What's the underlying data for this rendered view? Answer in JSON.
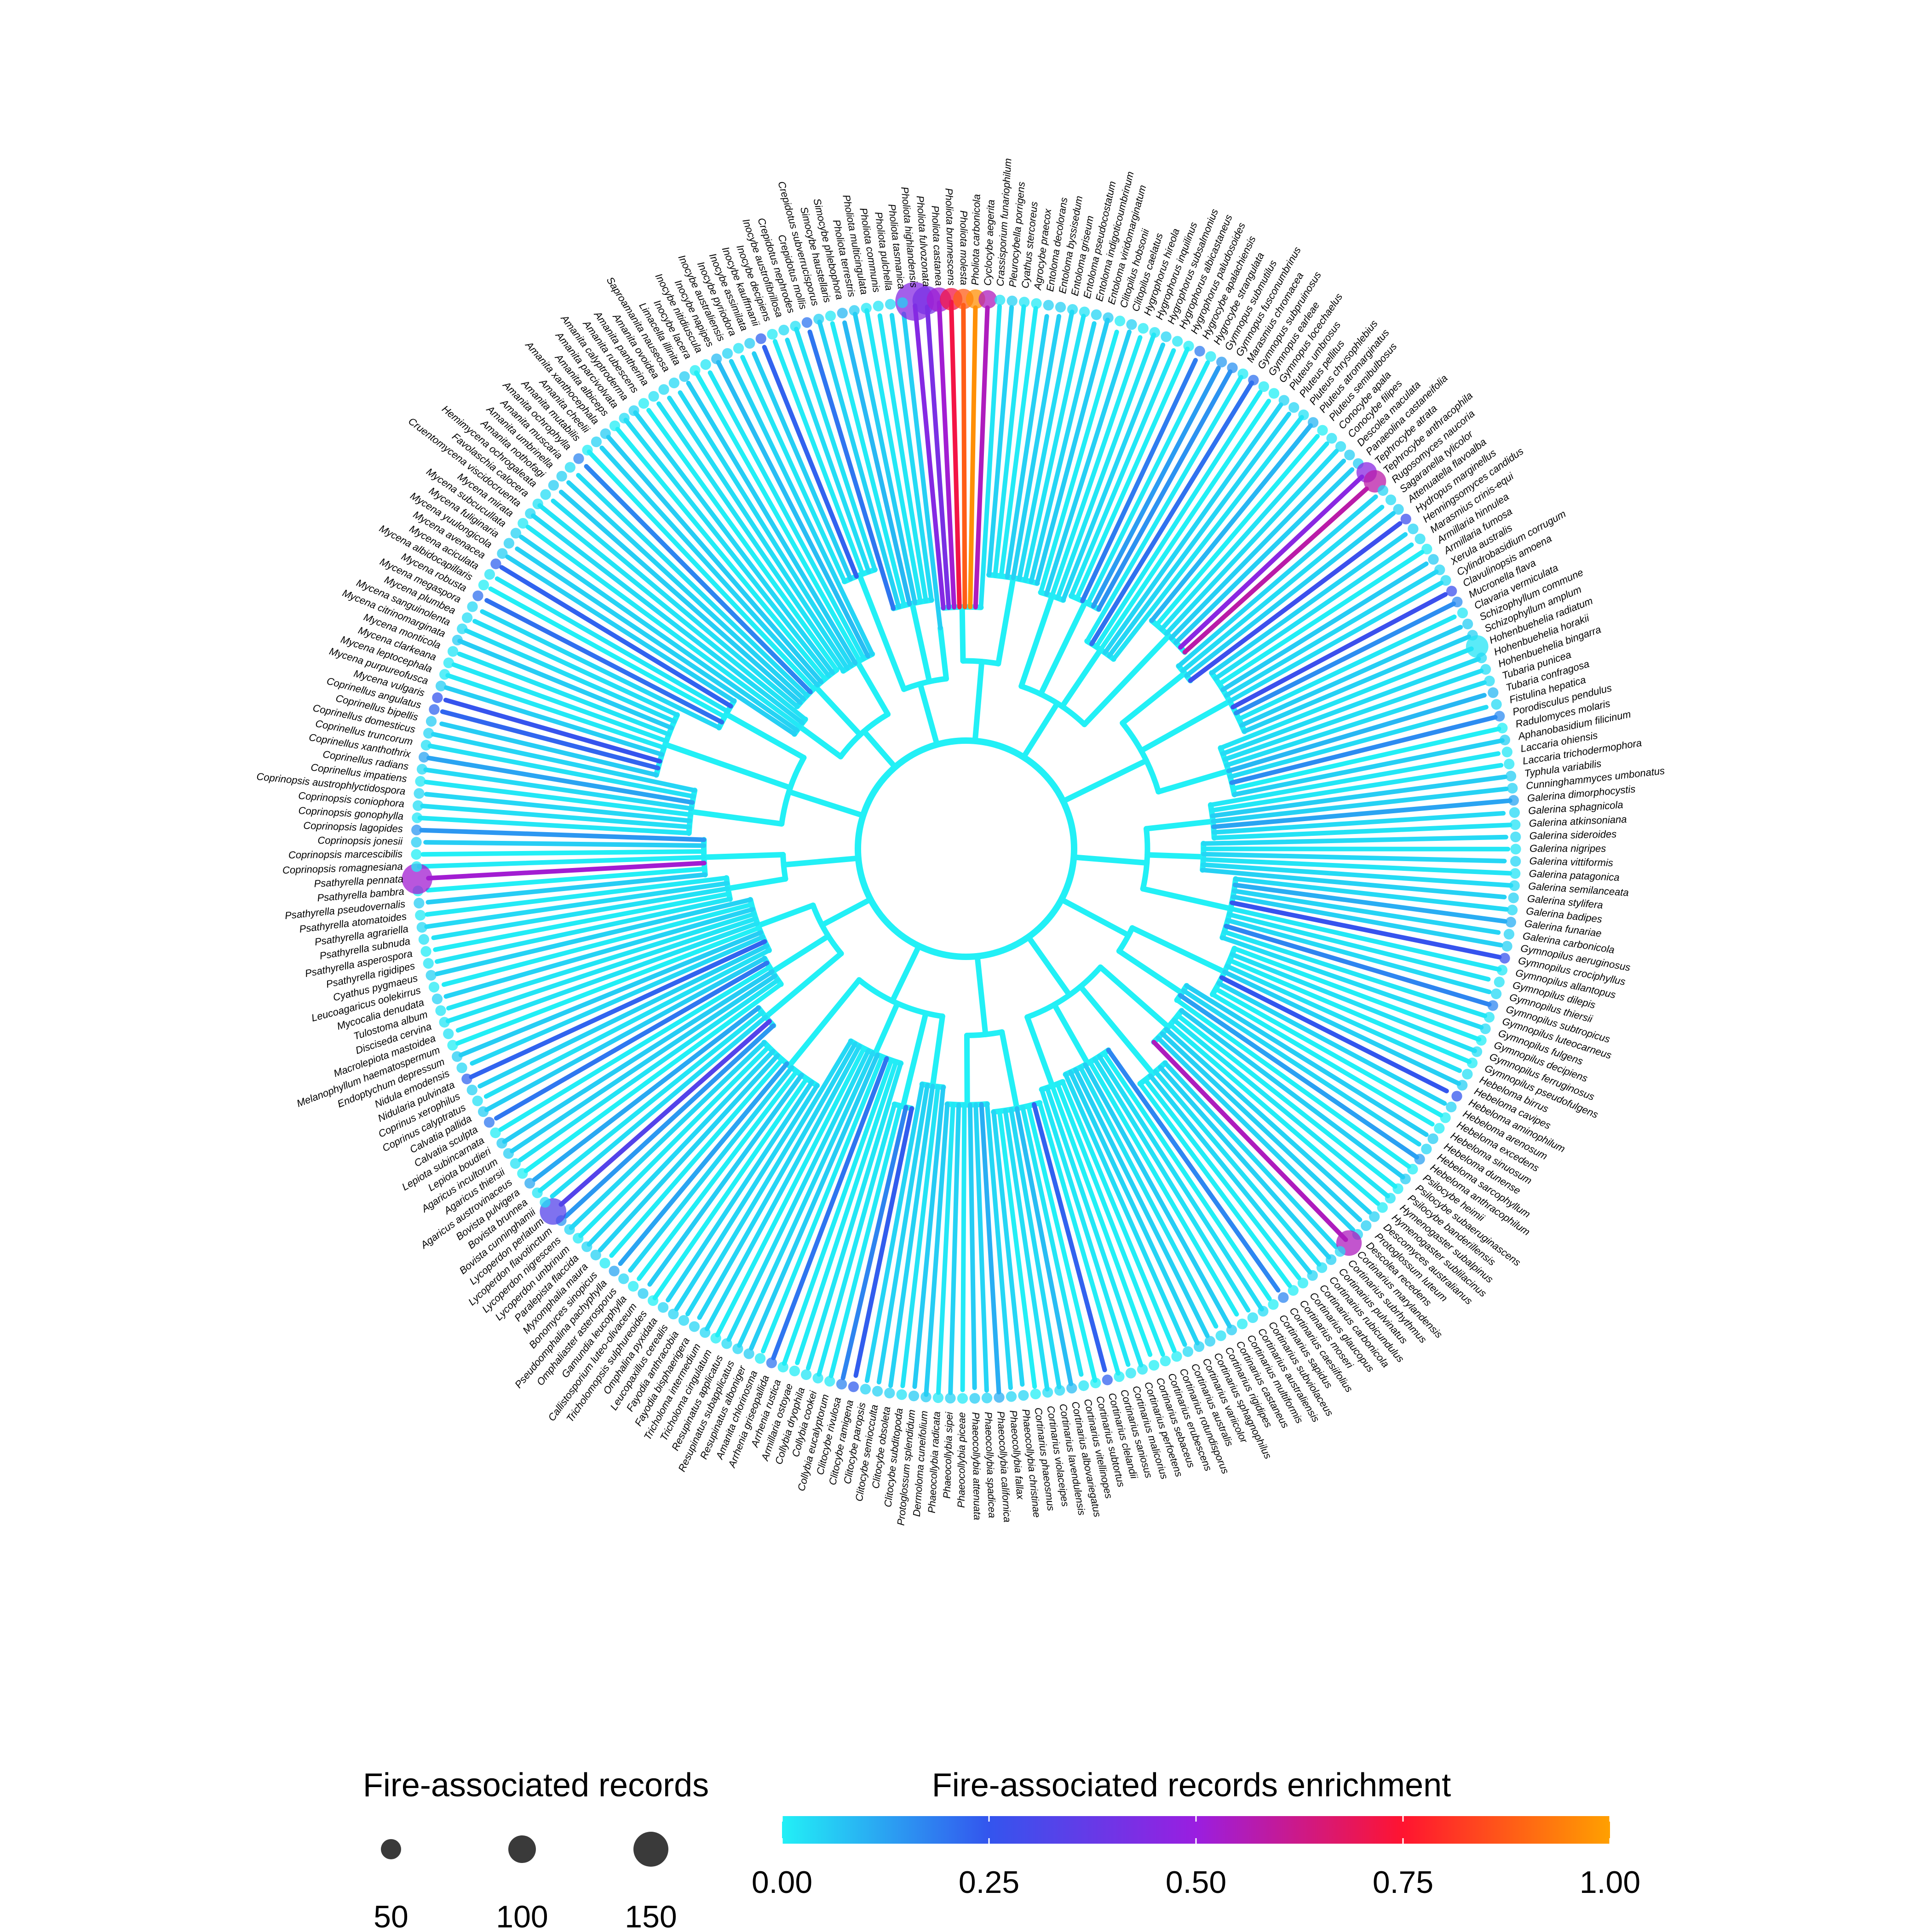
{
  "figure": {
    "type": "circular-phylogenetic-tree",
    "background": "#ffffff",
    "branch_color_default": "#22f0f6",
    "taxa": [
      "Pholiota highlandensis",
      "Pholiota fulvozonata",
      "Pholiota castanea",
      "Pholiota brunnescens",
      "Pholiota molesta",
      "Pholiota carbonicola",
      "Cyclocybe aegerita",
      "Crassisporium funariophilum",
      "Pleurocybella porrigens",
      "Cyathus stercoreus",
      "Agrocybe praecox",
      "Entoloma decolorans",
      "Entoloma byssisedum",
      "Entoloma griseum",
      "Entoloma pseudocostatum",
      "Entoloma indigoticoumbrinum",
      "Entoloma viridomarginatum",
      "Clitopilus hobsonii",
      "Clitopilus caelatus",
      "Hygrophorus hireola",
      "Hygrophorus inquilinus",
      "Hygrophorus subsalmonius",
      "Hygrophorus albicastaneus",
      "Hygrophorus paludosoides",
      "Hygrocybe apalachiensis",
      "Hygrocybe strangulata",
      "Gymnopus submutilus",
      "Gymnopus fusconumbrinus",
      "Marasmius chromacea",
      "Gymnopus subpruinosus",
      "Gymnopus earleae",
      "Gymnopus locechaelus",
      "Pluteus umbrosus",
      "Pluteus pellitus",
      "Pluteus chrysophlebius",
      "Pluteus atromarginatus",
      "Pluteus semibulbosus",
      "Conocybe apala",
      "Conocybe filipes",
      "Descolea maculata",
      "Panaeolina castaneifolia",
      "Tephrocybe atrata",
      "Tephrocybe anthracophila",
      "Rugosomyces naucoria",
      "Sagaranella tylicolor",
      "Attenuatella flavoalba",
      "Hydropus marginellus",
      "Henningsomyces candidus",
      "Marasmius crinis-equi",
      "Armillaria hinnulea",
      "Armillaria fumosa",
      "Xerula australis",
      "Cylindrobasidium corrugum",
      "Clavulinopsis amoena",
      "Mucronella flava",
      "Clavaria vermiculata",
      "Schizophyllum commune",
      "Schizophyllum amplum",
      "Hohenbuehelia radiatum",
      "Hohenbuehelia horakii",
      "Hohenbuehelia bingarra",
      "Tubaria punicea",
      "Tubaria confragosa",
      "Fistulina hepatica",
      "Porodisculus pendulus",
      "Radulomyces molaris",
      "Aphanobasidium filicinum",
      "Laccaria ohiensis",
      "Laccaria trichodermophora",
      "Typhula variabilis",
      "Cunninghammyces umbonatus",
      "Galerina dimorphocystis",
      "Galerina sphagnicola",
      "Galerina atkinsoniana",
      "Galerina sideroides",
      "Galerina nigripes",
      "Galerina vittiformis",
      "Galerina patagonica",
      "Galerina semilanceata",
      "Galerina stylifera",
      "Galerina badipes",
      "Galerina funariae",
      "Galerina carbonicola",
      "Gymnopilus aeruginosus",
      "Gymnopilus crociphyllus",
      "Gymnopilus allantopus",
      "Gymnopilus dilepis",
      "Gymnopilus thiersii",
      "Gymnopilus subtropicus",
      "Gymnopilus luteocarneus",
      "Gymnopilus fulgens",
      "Gymnopilus decipiens",
      "Gymnopilus ferruginosus",
      "Gymnopilus pseudofulgens",
      "Hebeloma birrus",
      "Hebeloma cavipes",
      "Hebeloma aminophilum",
      "Hebeloma arenosum",
      "Hebeloma excedens",
      "Hebeloma sinuosum",
      "Hebeloma dunense",
      "Hebeloma sarcophyllum",
      "Hebeloma anthracophilum",
      "Psilocybe heimii",
      "Psilocybe subaeruginascens",
      "Psilocybe banderillensis",
      "Hymenogaster subalpinus",
      "Hymenogaster sublilacinus",
      "Descomyces australianus",
      "Protoglossum luteum",
      "Descolea recedens",
      "Cortinarius marylandensis",
      "Cortinarius subrhythmus",
      "Cortinarius pulvinatus",
      "Cortinarius rubicundulus",
      "Cortinarius carbonicola",
      "Cortinarius glaucopus",
      "Cortinarius moseri",
      "Cortinarius caesiifolius",
      "Cortinarius sapidus",
      "Cortinarius subviolaceus",
      "Cortinarius australiensis",
      "Cortinarius multiformis",
      "Cortinarius castaneus",
      "Cortinarius rigidipes",
      "Cortinarius sphagnophilus",
      "Cortinarius variicolor",
      "Cortinarius australis",
      "Cortinarius rotundisporus",
      "Cortinarius erubescens",
      "Cortinarius sebaceus",
      "Cortinarius perfoetens",
      "Cortinarius malicorius",
      "Cortinarius saniosus",
      "Cortinarius clelandii",
      "Cortinarius subtortus",
      "Cortinarius vitellinopes",
      "Cortinarius albovariegatus",
      "Cortinarius lavendulensis",
      "Cortinarius violaceipes",
      "Cortinarius phaeosmus",
      "Phaeocollybia christinae",
      "Phaeocollybia fallax",
      "Phaeocollybia californica",
      "Phaeocollybia spadicea",
      "Phaeocollybia attenuata",
      "Phaeocollybia piceae",
      "Phaeocollybia sipei",
      "Phaeocollybia radicata",
      "Dermoloma cuneifolium",
      "Protoglossum splendidum",
      "Clitocybe subditopoda",
      "Clitocybe obsoleta",
      "Clitocybe semiocculta",
      "Clitocybe paropsis",
      "Clitocybe ramigena",
      "Clitocybe rivulosa",
      "Collybia eucalyptorum",
      "Collybia cookei",
      "Collybia dryophila",
      "Armillaria ostoyae",
      "Arrhenia rustica",
      "Arrhenia griseopallida",
      "Amanita chlorinosma",
      "Resupinatus alboniger",
      "Resupinatus subapplicatus",
      "Resupinatus applicatus",
      "Tricholoma cingulatum",
      "Tricholoma intermedium",
      "Fayodia bisphaerigera",
      "Fayodia anthracobia",
      "Leucopaxillus cerealis",
      "Omphalina pyxidata",
      "Tricholomopsis sulphureoides",
      "Callistosporium luteo-olivaceum",
      "Gamundia leucophylla",
      "Omphaliaster asterosporus",
      "Pseudoomphalina pachyphylla",
      "Bonomyces sinopicus",
      "Myxomphalia maura",
      "Paralepista flaccida",
      "Lycoperdon umbrinum",
      "Lycoperdon nigrescens",
      "Lycoperdon flavotinctum",
      "Lycoperdon perlatum",
      "Bovista cunninghamii",
      "Bovista brunnea",
      "Bovista pulvigera",
      "Agaricus austrovinaceus",
      "Agaricus thiersii",
      "Agaricus incultorum",
      "Lepiota boudieri",
      "Lepiota subincarnata",
      "Calvatia sculpta",
      "Calvatia pallida",
      "Coprinus calyptratus",
      "Coprinus xerophilus",
      "Nidularia pulvinata",
      "Nidula emodensis",
      "Endoptychum depressum",
      "Melanophyllum haematospermum",
      "Macrolepiota mastoidea",
      "Disciseda cervina",
      "Tulostoma album",
      "Mycocalia denudata",
      "Leucoagaricus oolekirrus",
      "Cyathus pygmaeus",
      "Psathyrella rigidipes",
      "Psathyrella asperospora",
      "Psathyrella subnuda",
      "Psathyrella agrariella",
      "Psathyrella atomatoides",
      "Psathyrella pseudovernalis",
      "Psathyrella bambra",
      "Psathyrella pennata",
      "Coprinopsis romagnesiana",
      "Coprinopsis marcescibilis",
      "Coprinopsis jonesii",
      "Coprinopsis lagopides",
      "Coprinopsis gonophylla",
      "Coprinopsis coniophora",
      "Coprinopsis austrophlyctidospora",
      "Coprinellus impatiens",
      "Coprinellus radians",
      "Coprinellus xanthothrix",
      "Coprinellus truncorum",
      "Coprinellus domesticus",
      "Coprinellus bipellis",
      "Coprinellus angulatus",
      "Mycena vulgaris",
      "Mycena purpureofusca",
      "Mycena leptocephala",
      "Mycena clarkeana",
      "Mycena monticola",
      "Mycena citrinomarginata",
      "Mycena sanguinolenta",
      "Mycena plumbea",
      "Mycena megaspora",
      "Mycena robusta",
      "Mycena albidocapillaris",
      "Mycena aciculata",
      "Mycena avenacea",
      "Mycena yuulongicola",
      "Mycena fuliginaria",
      "Mycena subcucullata",
      "Mycena mirata",
      "Cruentomycena viscidocruenta",
      "Favolaschia calocera",
      "Hemimycena ochrogaleata",
      "Amanita nothofagi",
      "Amanita umbrinella",
      "Amanita muscaria",
      "Amanita ochrophylla",
      "Amanita mutabilis",
      "Amanita cheelii",
      "Amanita xanthocephala",
      "Amanita albiceps",
      "Amanita parcivolvata",
      "Amanita calyptroderma",
      "Amanita rubescens",
      "Amanita pantherina",
      "Amanita ovoidea",
      "Saproamanita nauseosa",
      "Limacella illinita",
      "Inocybe lacera",
      "Inocybe nitidiuscula",
      "Inocybe napipes",
      "Inocybe australiensis",
      "Inocybe pyriodora",
      "Inocybe assimilata",
      "Inocybe kauffmanii",
      "Inocybe decipiens",
      "Inocybe austrofibrillosa",
      "Crepidotus nephrodes",
      "Crepidotus mollis",
      "Crepidotus subverrucisporus",
      "Simocybe haustellaris",
      "Simocybe phlebophora",
      "Pholiota terrestris",
      "Pholiota multicingulata",
      "Pholiota communis",
      "Pholiota pulchella",
      "Pholiota tasmanica"
    ],
    "highlighted_tips": [
      {
        "taxon": "Pholiota highlandensis",
        "records": 150,
        "enrichment": 0.45
      },
      {
        "taxon": "Pholiota fulvozonata",
        "records": 100,
        "enrichment": 0.42
      },
      {
        "taxon": "Pholiota castanea",
        "records": 80,
        "enrichment": 0.52
      },
      {
        "taxon": "Pholiota brunnescens",
        "records": 70,
        "enrichment": 0.72
      },
      {
        "taxon": "Pholiota molesta",
        "records": 60,
        "enrichment": 0.88
      },
      {
        "taxon": "Pholiota carbonicola",
        "records": 55,
        "enrichment": 0.97
      },
      {
        "taxon": "Cyclocybe aegerita",
        "records": 50,
        "enrichment": 0.55
      },
      {
        "taxon": "Tephrocybe atrata",
        "records": 60,
        "enrichment": 0.46
      },
      {
        "taxon": "Tephrocybe anthracophila",
        "records": 70,
        "enrichment": 0.58
      },
      {
        "taxon": "Psathyrella pennata",
        "records": 110,
        "enrichment": 0.52
      },
      {
        "taxon": "Lycoperdon perlatum",
        "records": 90,
        "enrichment": 0.33
      },
      {
        "taxon": "Cortinarius marylandensis",
        "records": 85,
        "enrichment": 0.55
      },
      {
        "taxon": "Hohenbuehelia radiatum",
        "records": 70,
        "enrichment": 0.02
      }
    ]
  },
  "legend_size": {
    "title": "Fire-associated records",
    "items": [
      {
        "label": "50",
        "value": 50
      },
      {
        "label": "100",
        "value": 100
      },
      {
        "label": "150",
        "value": 150
      }
    ],
    "color": "#3a3a3a"
  },
  "legend_color": {
    "title": "Fire-associated records enrichment",
    "ticks": [
      "0.00",
      "0.25",
      "0.50",
      "0.75",
      "1.00"
    ],
    "range": [
      0,
      1
    ],
    "stops": [
      {
        "offset": 0.0,
        "color": "#22f0f6"
      },
      {
        "offset": 0.25,
        "color": "#3355ee"
      },
      {
        "offset": 0.5,
        "color": "#9a1ee0"
      },
      {
        "offset": 0.75,
        "color": "#ff1430"
      },
      {
        "offset": 1.0,
        "color": "#ffa000"
      }
    ]
  }
}
